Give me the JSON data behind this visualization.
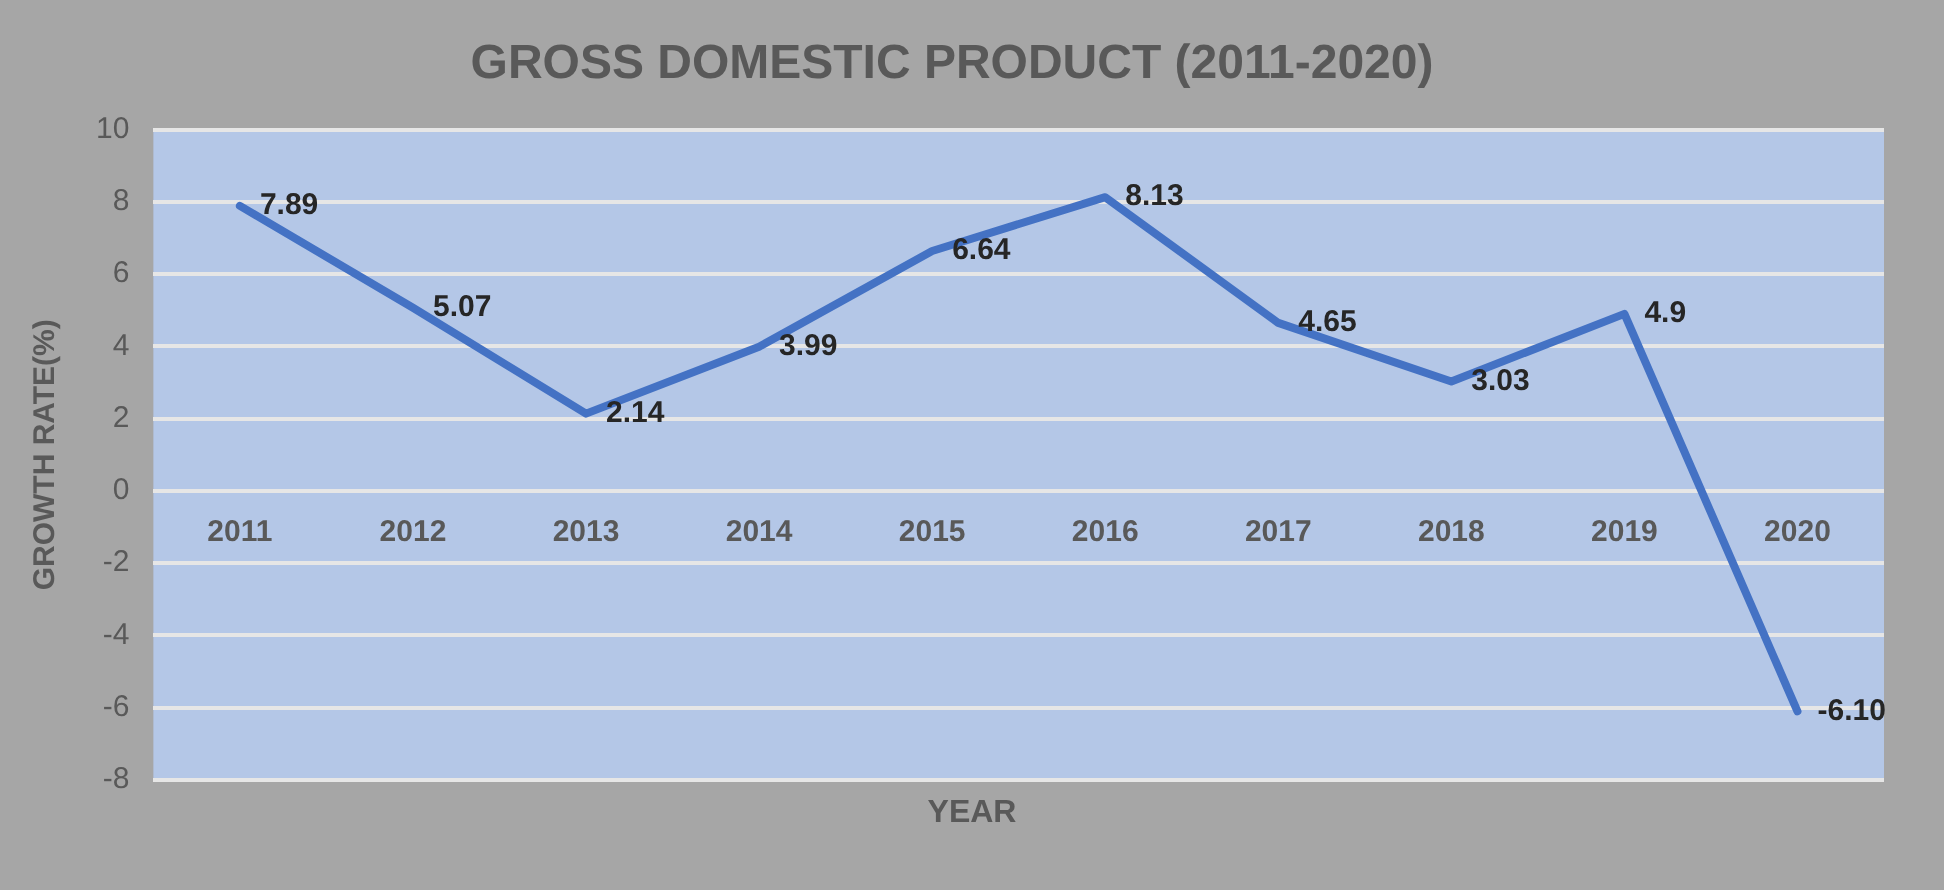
{
  "chart_data": {
    "type": "line",
    "title": "GROSS DOMESTIC PRODUCT (2011-2020)",
    "xlabel": "YEAR",
    "ylabel": "GROWTH RATE(%)",
    "categories": [
      "2011",
      "2012",
      "2013",
      "2014",
      "2015",
      "2016",
      "2017",
      "2018",
      "2019",
      "2020"
    ],
    "series": [
      {
        "color": "#4472c4",
        "values": [
          7.89,
          5.07,
          2.14,
          3.99,
          6.64,
          8.13,
          4.65,
          3.03,
          4.9,
          -6.1
        ],
        "value_labels": [
          "7.89",
          "5.07",
          "2.14",
          "3.99",
          "6.64",
          "8.13",
          "4.65",
          "3.03",
          "4.9",
          "-6.10"
        ]
      }
    ],
    "ylim": [
      -8,
      10
    ],
    "yticks": [
      -8,
      -6,
      -4,
      -2,
      0,
      2,
      4,
      6,
      8,
      10
    ],
    "grid": "y",
    "legend": false,
    "marker": "none",
    "line_style": "solid"
  }
}
